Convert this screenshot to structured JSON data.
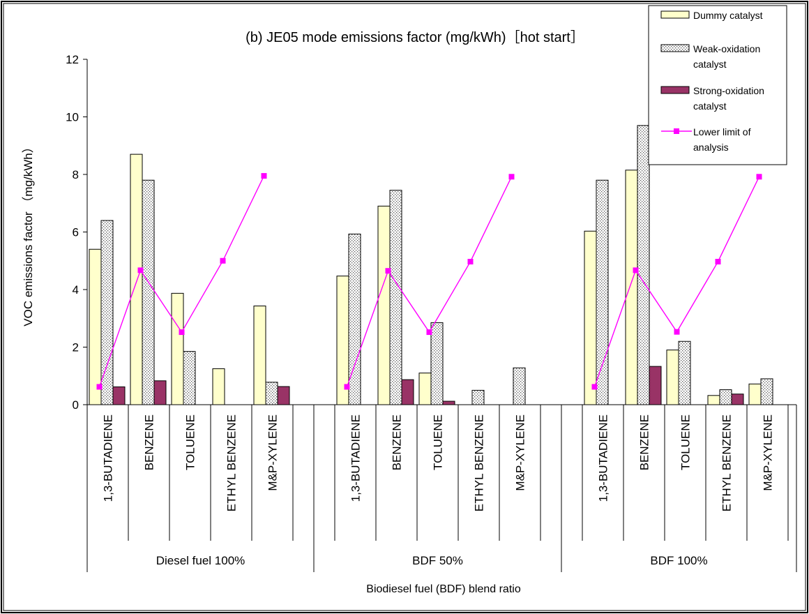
{
  "chart_data": {
    "type": "bar",
    "title": "(b) JE05 mode emissions factor (mg/kWh)［hot start］",
    "ylabel": "VOC emissions factor （mg/kWh）",
    "xlabel": "Biodiesel fuel (BDF) blend ratio",
    "ylim": [
      0,
      12
    ],
    "yticks": [
      "0",
      "2",
      "4",
      "6",
      "8",
      "10",
      "12"
    ],
    "groups": [
      {
        "label": "Diesel fuel 100%",
        "categories": [
          "1,3-BUTADIENE",
          "BENZENE",
          "TOLUENE",
          "ETHYL BENZENE",
          "M&P-XYLENE"
        ],
        "series": [
          {
            "name": "Dummy catalyst",
            "values": [
              5.4,
              8.7,
              3.87,
              1.25,
              3.43
            ]
          },
          {
            "name": "Weak-oxidation catalyst",
            "values": [
              6.4,
              7.8,
              1.85,
              0,
              0.78
            ]
          },
          {
            "name": "Strong-oxidation catalyst",
            "values": [
              0.62,
              0.83,
              0,
              0,
              0.63
            ]
          },
          {
            "name": "Lower limit of analysis",
            "values": [
              0.62,
              4.67,
              2.52,
              5.0,
              7.95
            ]
          }
        ]
      },
      {
        "label": "BDF 50%",
        "categories": [
          "1,3-BUTADIENE",
          "BENZENE",
          "TOLUENE",
          "ETHYL BENZENE",
          "M&P-XYLENE"
        ],
        "series": [
          {
            "name": "Dummy catalyst",
            "values": [
              4.47,
              6.9,
              1.1,
              0,
              0
            ]
          },
          {
            "name": "Weak-oxidation catalyst",
            "values": [
              5.93,
              7.45,
              2.85,
              0.5,
              1.28
            ]
          },
          {
            "name": "Strong-oxidation catalyst",
            "values": [
              0,
              0.87,
              0.12,
              0,
              0
            ]
          },
          {
            "name": "Lower limit of analysis",
            "values": [
              0.62,
              4.65,
              2.52,
              4.97,
              7.92
            ]
          }
        ]
      },
      {
        "label": "BDF 100%",
        "categories": [
          "1,3-BUTADIENE",
          "BENZENE",
          "TOLUENE",
          "ETHYL BENZENE",
          "M&P-XYLENE"
        ],
        "series": [
          {
            "name": "Dummy catalyst",
            "values": [
              6.03,
              8.15,
              1.9,
              0.32,
              0.72
            ]
          },
          {
            "name": "Weak-oxidation catalyst",
            "values": [
              7.8,
              9.7,
              2.2,
              0.52,
              0.9
            ]
          },
          {
            "name": "Strong-oxidation catalyst",
            "values": [
              0,
              1.33,
              0,
              0.37,
              0
            ]
          },
          {
            "name": "Lower limit of analysis",
            "values": [
              0.62,
              4.67,
              2.53,
              4.97,
              7.92
            ]
          }
        ]
      }
    ],
    "legend": {
      "position": "top-right",
      "entries": [
        {
          "text": "Dummy catalyst",
          "line1": "Dummy catalyst",
          "line2": ""
        },
        {
          "text": "Weak-oxidation catalyst",
          "line1": "Weak-oxidation",
          "line2": "catalyst"
        },
        {
          "text": "Strong-oxidation catalyst",
          "line1": "Strong-oxidation",
          "line2": "catalyst"
        },
        {
          "text": "Lower limit of analysis",
          "line1": "Lower limit of",
          "line2": "analysis"
        }
      ]
    },
    "colors": {
      "dummy": "#ffffcc",
      "weak_fill": "#ffffff",
      "weak_dots": "#555555",
      "strong": "#993366",
      "line": "#ff00ff"
    },
    "grid": false
  }
}
